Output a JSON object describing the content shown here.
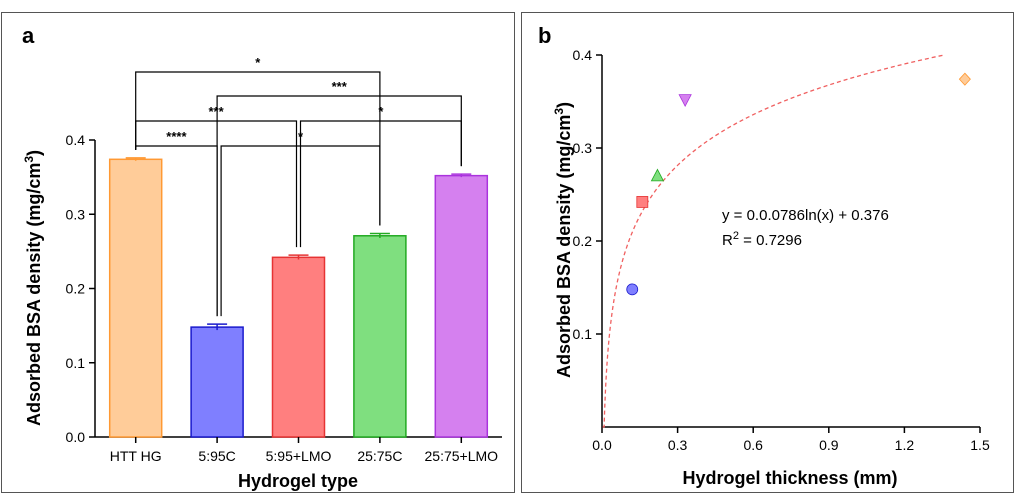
{
  "chart_data": [
    {
      "panel": "a",
      "type": "bar",
      "xlabel": "Hydrogel type",
      "ylabel": "Adsorbed BSA density (mg/cm",
      "ylabel_sup": "3",
      "ylabel_end": ")",
      "ylim": [
        0,
        0.4
      ],
      "yticks": [
        "0.0",
        "0.1",
        "0.2",
        "0.3",
        "0.4"
      ],
      "categories": [
        "HTT HG",
        "5:95C",
        "5:95+LMO",
        "25:75C",
        "25:75+LMO"
      ],
      "values": [
        0.374,
        0.148,
        0.242,
        0.271,
        0.352
      ],
      "errors": [
        0.002,
        0.004,
        0.003,
        0.003,
        0.002
      ],
      "fill_colors": [
        "#ffcc99",
        "#7f7fff",
        "#ff7f7f",
        "#7fdf7f",
        "#d580ef"
      ],
      "edge_colors": [
        "#ff9933",
        "#1a1acc",
        "#e63333",
        "#22aa22",
        "#aa33dd"
      ],
      "significance": [
        {
          "from": 0,
          "to": 3,
          "label": "*"
        },
        {
          "from": 1,
          "to": 4,
          "label": "***"
        },
        {
          "from": 0,
          "to": 2,
          "label": "***"
        },
        {
          "from": 2,
          "to": 4,
          "label": "*"
        },
        {
          "from": 0,
          "to": 1,
          "label": "****"
        },
        {
          "from": 1,
          "to": 3,
          "label": "*"
        }
      ]
    },
    {
      "panel": "b",
      "type": "scatter",
      "xlabel": "Hydrogel thickness (mm)",
      "ylabel": "Adsorbed BSA density (mg/cm",
      "ylabel_sup": "3",
      "ylabel_end": ")",
      "xlim": [
        0,
        1.5
      ],
      "ylim": [
        0,
        0.4
      ],
      "xticks": [
        "0.0",
        "0.3",
        "0.6",
        "0.9",
        "1.2",
        "1.5"
      ],
      "yticks": [
        "0.1",
        "0.2",
        "0.3",
        "0.4"
      ],
      "points": [
        {
          "x": 0.12,
          "y": 0.148,
          "marker": "circle",
          "color": "#7f7fff",
          "edge": "#1a1acc"
        },
        {
          "x": 0.16,
          "y": 0.242,
          "marker": "square",
          "color": "#ff7f7f",
          "edge": "#e63333"
        },
        {
          "x": 0.22,
          "y": 0.27,
          "marker": "triangle-up",
          "color": "#7fdf7f",
          "edge": "#22aa22"
        },
        {
          "x": 0.33,
          "y": 0.352,
          "marker": "triangle-down",
          "color": "#d580ef",
          "edge": "#aa33dd"
        },
        {
          "x": 1.44,
          "y": 0.374,
          "marker": "diamond",
          "color": "#ffcc99",
          "edge": "#ff9933"
        }
      ],
      "fit": {
        "a": 0.0786,
        "b": 0.376,
        "x_range": [
          0.002,
          1.36
        ],
        "color": "#f06060"
      },
      "equation": "y = 0.0.0786ln(x) + 0.376",
      "r2_label": "R",
      "r2_sup": "2",
      "r2_value": " = 0.7296"
    }
  ]
}
